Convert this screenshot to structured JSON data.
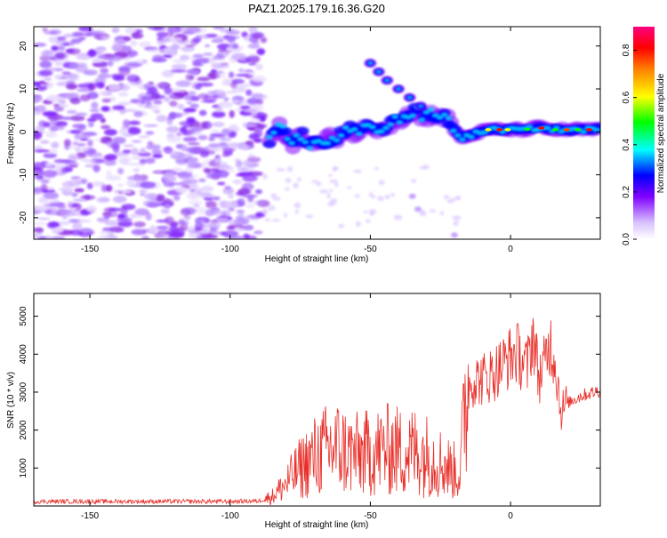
{
  "title": "PAZ1.2025.179.16.36.G20",
  "chart_data": [
    {
      "type": "heatmap",
      "xlabel": "Height of straight line (km)",
      "ylabel": "Frequency (Hz)",
      "xlim": [
        -170,
        32
      ],
      "ylim": [
        -25,
        24.5
      ],
      "xticks": [
        -150,
        -100,
        -50,
        0
      ],
      "yticks": [
        -20,
        -10,
        0,
        10,
        20
      ],
      "ridge": [
        [
          -86,
          -2.5
        ],
        [
          -82,
          1.0
        ],
        [
          -78,
          -2.5
        ],
        [
          -74,
          -1.0
        ],
        [
          -70,
          -3.5
        ],
        [
          -66,
          -2.0
        ],
        [
          -62,
          -1.0
        ],
        [
          -58,
          0.5
        ],
        [
          -54,
          -0.5
        ],
        [
          -50,
          1.5
        ],
        [
          -46,
          1.0
        ],
        [
          -42,
          2.5
        ],
        [
          -38,
          3.5
        ],
        [
          -34,
          4.5
        ],
        [
          -30,
          3.5
        ],
        [
          -26,
          4.5
        ],
        [
          -22,
          2.5
        ],
        [
          -19,
          -0.5
        ],
        [
          -17,
          -1.5
        ],
        [
          -13,
          -0.5
        ],
        [
          -8,
          0.5
        ],
        [
          -4,
          0.5
        ],
        [
          0,
          0.5
        ],
        [
          5,
          0.5
        ],
        [
          10,
          1.0
        ],
        [
          15,
          0.5
        ],
        [
          20,
          0.5
        ],
        [
          25,
          0.5
        ],
        [
          32,
          0.5
        ]
      ],
      "secondary_branch": [
        [
          -50,
          16
        ],
        [
          -47,
          14
        ],
        [
          -44,
          12
        ],
        [
          -40,
          10
        ],
        [
          -36,
          8
        ],
        [
          -32,
          6
        ]
      ],
      "colorbar": {
        "label": "Normalized spectral amplitude",
        "range": [
          0,
          0.9
        ],
        "ticks": [
          0.0,
          0.2,
          0.4,
          0.6,
          0.8
        ],
        "colors": [
          "#ffffff",
          "#d8c0ff",
          "#8000ff",
          "#0000ff",
          "#00ffff",
          "#00ff00",
          "#ffff00",
          "#ff8000",
          "#ff0000",
          "#ff0080"
        ]
      }
    },
    {
      "type": "line",
      "xlabel": "Height of straight line (km)",
      "ylabel": "SNR (10 * v/v)",
      "xlim": [
        -170,
        32
      ],
      "ylim": [
        0,
        5600
      ],
      "xticks": [
        -150,
        -100,
        -50,
        0
      ],
      "yticks": [
        1000,
        2000,
        3000,
        4000,
        5000
      ],
      "line_color": "#e8302a",
      "series": [
        {
          "x": [
            -170,
            -160,
            -150,
            -140,
            -130,
            -120,
            -110,
            -100,
            -90,
            -85,
            -80,
            -75,
            -70,
            -65,
            -62,
            -58,
            -54,
            -50,
            -46,
            -42,
            -38,
            -34,
            -30,
            -26,
            -22,
            -18,
            -16,
            -14,
            -10,
            -6,
            -2,
            2,
            6,
            8,
            10,
            12,
            14,
            16,
            18,
            20,
            25,
            32
          ],
          "y": [
            120,
            120,
            120,
            120,
            120,
            120,
            120,
            120,
            130,
            250,
            600,
            1000,
            1300,
            1500,
            1550,
            1400,
            1350,
            1400,
            1450,
            1500,
            1400,
            1450,
            1350,
            1200,
            1000,
            850,
            2900,
            3300,
            3350,
            3500,
            3800,
            4050,
            3650,
            4600,
            3400,
            3700,
            4350,
            3800,
            2500,
            2700,
            2900,
            3050
          ]
        }
      ]
    }
  ]
}
